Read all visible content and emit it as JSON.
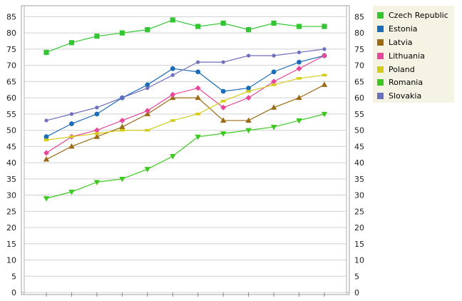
{
  "chart_data": {
    "type": "line",
    "title": "",
    "xlabel": "",
    "ylabel": "",
    "ylim": [
      0,
      87
    ],
    "yticks": [
      0,
      5,
      10,
      15,
      20,
      25,
      30,
      35,
      40,
      45,
      50,
      55,
      60,
      65,
      70,
      75,
      80,
      85
    ],
    "grid": true,
    "legend_position": "top-right, outside plot",
    "series": [
      {
        "name": "Czech Republic",
        "color": "#33c633",
        "marker": "square",
        "values": [
          74,
          77,
          79,
          80,
          81,
          84,
          82,
          83,
          81,
          83,
          82,
          82
        ]
      },
      {
        "name": "Estonia",
        "color": "#1a6bb8",
        "marker": "circle",
        "values": [
          48,
          52,
          55,
          60,
          64,
          69,
          68,
          62,
          63,
          68,
          71,
          73
        ]
      },
      {
        "name": "Latvia",
        "color": "#9b6b14",
        "marker": "triangle-up",
        "values": [
          41,
          45,
          48,
          51,
          55,
          60,
          60,
          53,
          53,
          57,
          60,
          64
        ]
      },
      {
        "name": "Lithuania",
        "color": "#e8489a",
        "marker": "diamond",
        "values": [
          43,
          48,
          50,
          53,
          56,
          61,
          63,
          57,
          60,
          65,
          69,
          73
        ]
      },
      {
        "name": "Poland",
        "color": "#d4cc1a",
        "marker": "dash",
        "values": [
          47,
          48,
          49,
          50,
          50,
          53,
          55,
          59,
          62,
          64,
          66,
          67
        ]
      },
      {
        "name": "Romania",
        "color": "#3cc820",
        "marker": "triangle-down",
        "values": [
          29,
          31,
          34,
          35,
          38,
          42,
          48,
          49,
          50,
          51,
          53,
          55
        ]
      },
      {
        "name": "Slovakia",
        "color": "#6e6ebe",
        "marker": "small-circle",
        "values": [
          53,
          55,
          57,
          60,
          63,
          67,
          71,
          71,
          73,
          73,
          74,
          75
        ]
      }
    ]
  }
}
